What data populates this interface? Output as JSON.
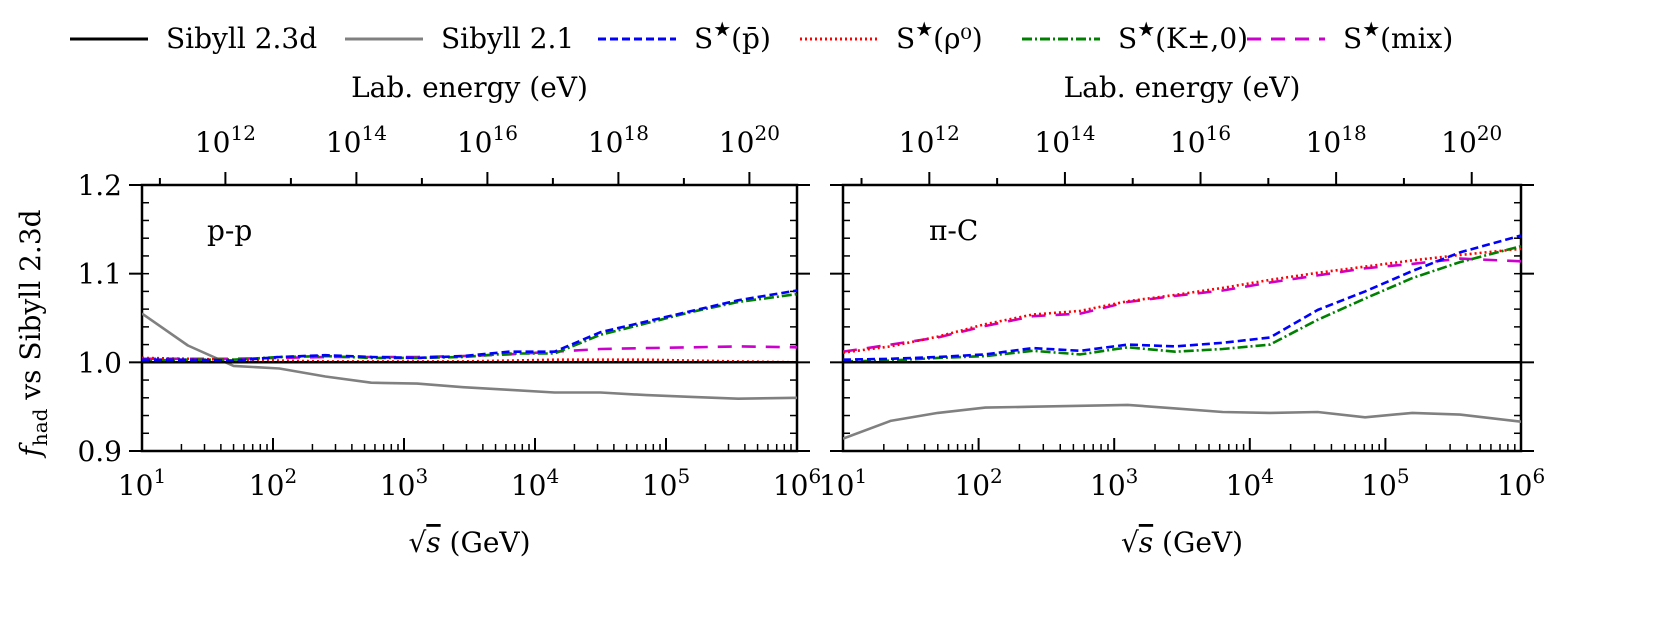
{
  "legend": {
    "items": [
      {
        "key": "sib23d",
        "prefix": "Sibyll 2.3d",
        "arg": ""
      },
      {
        "key": "sib21",
        "prefix": "Sibyll 2.1",
        "arg": ""
      },
      {
        "key": "pbar",
        "prefix": "S★",
        "arg": "(p̄)"
      },
      {
        "key": "rho",
        "prefix": "S★",
        "arg": "(ρ⁰)"
      },
      {
        "key": "kaon",
        "prefix": "S★",
        "arg": "(K±,0)"
      },
      {
        "key": "mix",
        "prefix": "S★",
        "arg": "(mix)"
      }
    ]
  },
  "styles": {
    "sib23d": {
      "color": "#000000",
      "dash": ""
    },
    "sib21": {
      "color": "#808080",
      "dash": ""
    },
    "pbar": {
      "color": "#0000ff",
      "dash": "8,4"
    },
    "rho": {
      "color": "#ff0000",
      "dash": "2,3"
    },
    "kaon": {
      "color": "#008000",
      "dash": "10,3,2,3"
    },
    "mix": {
      "color": "#cc00cc",
      "dash": "14,10"
    }
  },
  "chart_data": [
    {
      "type": "line",
      "panel_label": "p-p",
      "xlabel": "√s (GeV)",
      "ylabel": "f_had vs Sibyll 2.3d",
      "top_xlabel": "Lab. energy (eV)",
      "x_scale": "log",
      "xlim": [
        10,
        1000000
      ],
      "ylim": [
        0.9,
        1.2
      ],
      "x_ticks": [
        {
          "v": 10,
          "label": "10^1"
        },
        {
          "v": 100,
          "label": "10^2"
        },
        {
          "v": 1000,
          "label": "10^3"
        },
        {
          "v": 10000,
          "label": "10^4"
        },
        {
          "v": 100000,
          "label": "10^5"
        },
        {
          "v": 1000000,
          "label": "10^6"
        }
      ],
      "top_ticks": [
        {
          "v": 1000000000000.0,
          "label": "10^12"
        },
        {
          "v": 100000000000000.0,
          "label": "10^14"
        },
        {
          "v": 1e+16,
          "label": "10^16"
        },
        {
          "v": 1e+18,
          "label": "10^18"
        },
        {
          "v": 1e+20,
          "label": "10^20"
        }
      ],
      "y_ticks": [
        {
          "v": 0.9,
          "label": "0.9"
        },
        {
          "v": 1.0,
          "label": "1.0"
        },
        {
          "v": 1.1,
          "label": "1.1"
        },
        {
          "v": 1.2,
          "label": "1.2"
        }
      ],
      "x": [
        10,
        22.4,
        50,
        112,
        251,
        562,
        1260,
        2820,
        6310,
        14100,
        31600,
        70800,
        158000,
        355000,
        1000000
      ],
      "series": [
        {
          "key": "sib23d",
          "name": "Sibyll 2.3d",
          "values": [
            1.0,
            1.0,
            1.0,
            1.0,
            1.0,
            1.0,
            1.0,
            1.0,
            1.0,
            1.0,
            1.0,
            1.0,
            1.0,
            1.0,
            1.0
          ]
        },
        {
          "key": "sib21",
          "name": "Sibyll 2.1",
          "values": [
            1.055,
            1.019,
            0.996,
            0.993,
            0.984,
            0.977,
            0.976,
            0.972,
            0.969,
            0.966,
            0.966,
            0.963,
            0.961,
            0.959,
            0.96
          ]
        },
        {
          "key": "pbar",
          "name": "S★(p̄)",
          "values": [
            1.003,
            1.003,
            1.002,
            1.006,
            1.008,
            1.006,
            1.005,
            1.007,
            1.012,
            1.012,
            1.034,
            1.046,
            1.058,
            1.07,
            1.081
          ]
        },
        {
          "key": "rho",
          "name": "S★(ρ⁰)",
          "values": [
            1.005,
            1.004,
            1.003,
            1.002,
            1.001,
            1.001,
            1.001,
            1.001,
            1.002,
            1.003,
            1.003,
            1.003,
            1.002,
            1.001,
            1.0
          ]
        },
        {
          "key": "kaon",
          "name": "S★(K±,0)",
          "values": [
            1.002,
            1.003,
            1.003,
            1.006,
            1.007,
            1.005,
            1.005,
            1.006,
            1.01,
            1.01,
            1.031,
            1.044,
            1.057,
            1.068,
            1.077
          ]
        },
        {
          "key": "mix",
          "name": "S★(mix)",
          "values": [
            1.004,
            1.004,
            1.004,
            1.005,
            1.006,
            1.006,
            1.006,
            1.007,
            1.009,
            1.012,
            1.015,
            1.016,
            1.017,
            1.018,
            1.017
          ]
        }
      ]
    },
    {
      "type": "line",
      "panel_label": "π-C",
      "xlabel": "√s (GeV)",
      "top_xlabel": "Lab. energy (eV)",
      "x_scale": "log",
      "xlim": [
        10,
        1000000
      ],
      "ylim": [
        0.9,
        1.2
      ],
      "x_ticks": [
        {
          "v": 10,
          "label": "10^1"
        },
        {
          "v": 100,
          "label": "10^2"
        },
        {
          "v": 1000,
          "label": "10^3"
        },
        {
          "v": 10000,
          "label": "10^4"
        },
        {
          "v": 100000,
          "label": "10^5"
        },
        {
          "v": 1000000,
          "label": "10^6"
        }
      ],
      "top_ticks": [
        {
          "v": 1000000000000.0,
          "label": "10^12"
        },
        {
          "v": 100000000000000.0,
          "label": "10^14"
        },
        {
          "v": 1e+16,
          "label": "10^16"
        },
        {
          "v": 1e+18,
          "label": "10^18"
        },
        {
          "v": 1e+20,
          "label": "10^20"
        }
      ],
      "x": [
        10,
        22.4,
        50,
        112,
        251,
        562,
        1260,
        2820,
        6310,
        14100,
        31600,
        70800,
        158000,
        355000,
        1000000
      ],
      "series": [
        {
          "key": "sib23d",
          "name": "Sibyll 2.3d",
          "values": [
            1.0,
            1.0,
            1.0,
            1.0,
            1.0,
            1.0,
            1.0,
            1.0,
            1.0,
            1.0,
            1.0,
            1.0,
            1.0,
            1.0,
            1.0
          ]
        },
        {
          "key": "sib21",
          "name": "Sibyll 2.1",
          "values": [
            0.914,
            0.934,
            0.943,
            0.949,
            0.95,
            0.951,
            0.952,
            0.948,
            0.944,
            0.943,
            0.944,
            0.938,
            0.943,
            0.941,
            0.933
          ]
        },
        {
          "key": "pbar",
          "name": "S★(p̄)",
          "values": [
            1.003,
            1.004,
            1.006,
            1.009,
            1.016,
            1.013,
            1.02,
            1.018,
            1.022,
            1.028,
            1.059,
            1.08,
            1.103,
            1.124,
            1.143
          ]
        },
        {
          "key": "rho",
          "name": "S★(ρ⁰)",
          "values": [
            1.011,
            1.018,
            1.029,
            1.043,
            1.054,
            1.058,
            1.069,
            1.076,
            1.084,
            1.093,
            1.101,
            1.108,
            1.115,
            1.121,
            1.128
          ]
        },
        {
          "key": "kaon",
          "name": "S★(K±,0)",
          "values": [
            1.001,
            1.002,
            1.005,
            1.007,
            1.013,
            1.009,
            1.017,
            1.012,
            1.015,
            1.02,
            1.048,
            1.072,
            1.095,
            1.113,
            1.131
          ]
        },
        {
          "key": "mix",
          "name": "S★(mix)",
          "values": [
            1.012,
            1.02,
            1.028,
            1.041,
            1.052,
            1.055,
            1.068,
            1.075,
            1.081,
            1.09,
            1.098,
            1.106,
            1.111,
            1.117,
            1.114
          ]
        }
      ]
    }
  ]
}
